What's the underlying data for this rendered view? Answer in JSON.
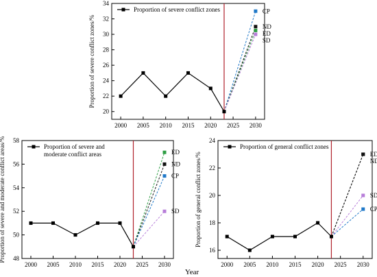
{
  "shared_xlabel": "Year",
  "chart_data": [
    {
      "type": "line",
      "ylabel": "Proportion of severe conflict zones/%",
      "ylim": [
        19,
        34
      ],
      "yticks": [
        20,
        22,
        24,
        26,
        28,
        30,
        32,
        34
      ],
      "xlim": [
        1998,
        2032
      ],
      "xticks": [
        2000,
        2005,
        2010,
        2015,
        2020,
        2025,
        2030
      ],
      "divider_x": 2023,
      "legend": "Proportion of severe conflict zones",
      "legend_position": "top-left",
      "history": {
        "x": [
          2000,
          2005,
          2010,
          2015,
          2020,
          2023
        ],
        "y": [
          22,
          25,
          22,
          25,
          23,
          20
        ]
      },
      "scenarios": [
        {
          "name": "CP",
          "x": [
            2023,
            2030
          ],
          "y": [
            20,
            33
          ],
          "color": "#1f78c8"
        },
        {
          "name": "ND",
          "x": [
            2023,
            2030
          ],
          "y": [
            20,
            31
          ],
          "color": "#111111"
        },
        {
          "name": "ED",
          "x": [
            2023,
            2030
          ],
          "y": [
            20,
            30.5
          ],
          "color": "#2e9e44"
        },
        {
          "name": "SD",
          "x": [
            2023,
            2030
          ],
          "y": [
            20,
            30
          ],
          "color": "#b77dd9"
        }
      ]
    },
    {
      "type": "line",
      "ylabel": "Proportion of severe and moderate conflict areas/%",
      "ylim": [
        48,
        58
      ],
      "yticks": [
        48,
        50,
        52,
        54,
        56,
        58
      ],
      "xlim": [
        1998,
        2032
      ],
      "xticks": [
        2000,
        2005,
        2010,
        2015,
        2020,
        2025,
        2030
      ],
      "divider_x": 2023,
      "legend": [
        "Proportion of severe and",
        "moderate conflict areas"
      ],
      "legend_position": "top-left",
      "history": {
        "x": [
          2000,
          2005,
          2010,
          2015,
          2020,
          2023
        ],
        "y": [
          51,
          51,
          50,
          51,
          51,
          49
        ]
      },
      "scenarios": [
        {
          "name": "ED",
          "x": [
            2023,
            2030
          ],
          "y": [
            49,
            57
          ],
          "color": "#2e9e44"
        },
        {
          "name": "ND",
          "x": [
            2023,
            2030
          ],
          "y": [
            49,
            56
          ],
          "color": "#111111"
        },
        {
          "name": "CP",
          "x": [
            2023,
            2030
          ],
          "y": [
            49,
            55
          ],
          "color": "#1f78c8"
        },
        {
          "name": "SD",
          "x": [
            2023,
            2030
          ],
          "y": [
            49,
            52
          ],
          "color": "#b77dd9"
        }
      ]
    },
    {
      "type": "line",
      "ylabel": "Proportion of general conflict zones/%",
      "ylim": [
        15.4,
        24
      ],
      "yticks": [
        16,
        18,
        20,
        22,
        24
      ],
      "xlim": [
        1998,
        2032
      ],
      "xticks": [
        2000,
        2005,
        2010,
        2015,
        2020,
        2025,
        2030
      ],
      "divider_x": 2023,
      "legend": "Proportion of general conflict zones",
      "legend_position": "top-left",
      "history": {
        "x": [
          2000,
          2005,
          2010,
          2015,
          2020,
          2023
        ],
        "y": [
          17,
          16,
          17,
          17,
          18,
          17
        ]
      },
      "scenarios": [
        {
          "name": "ED",
          "x": [
            2023,
            2030
          ],
          "y": [
            17,
            23
          ],
          "color": "#111111"
        },
        {
          "name": "ND",
          "x": [
            2023,
            2030
          ],
          "y": [
            17,
            23
          ],
          "color": "#111111"
        },
        {
          "name": "SD",
          "x": [
            2023,
            2030
          ],
          "y": [
            17,
            20
          ],
          "color": "#b77dd9"
        },
        {
          "name": "CP",
          "x": [
            2023,
            2030
          ],
          "y": [
            17,
            19
          ],
          "color": "#1f78c8"
        }
      ]
    }
  ]
}
